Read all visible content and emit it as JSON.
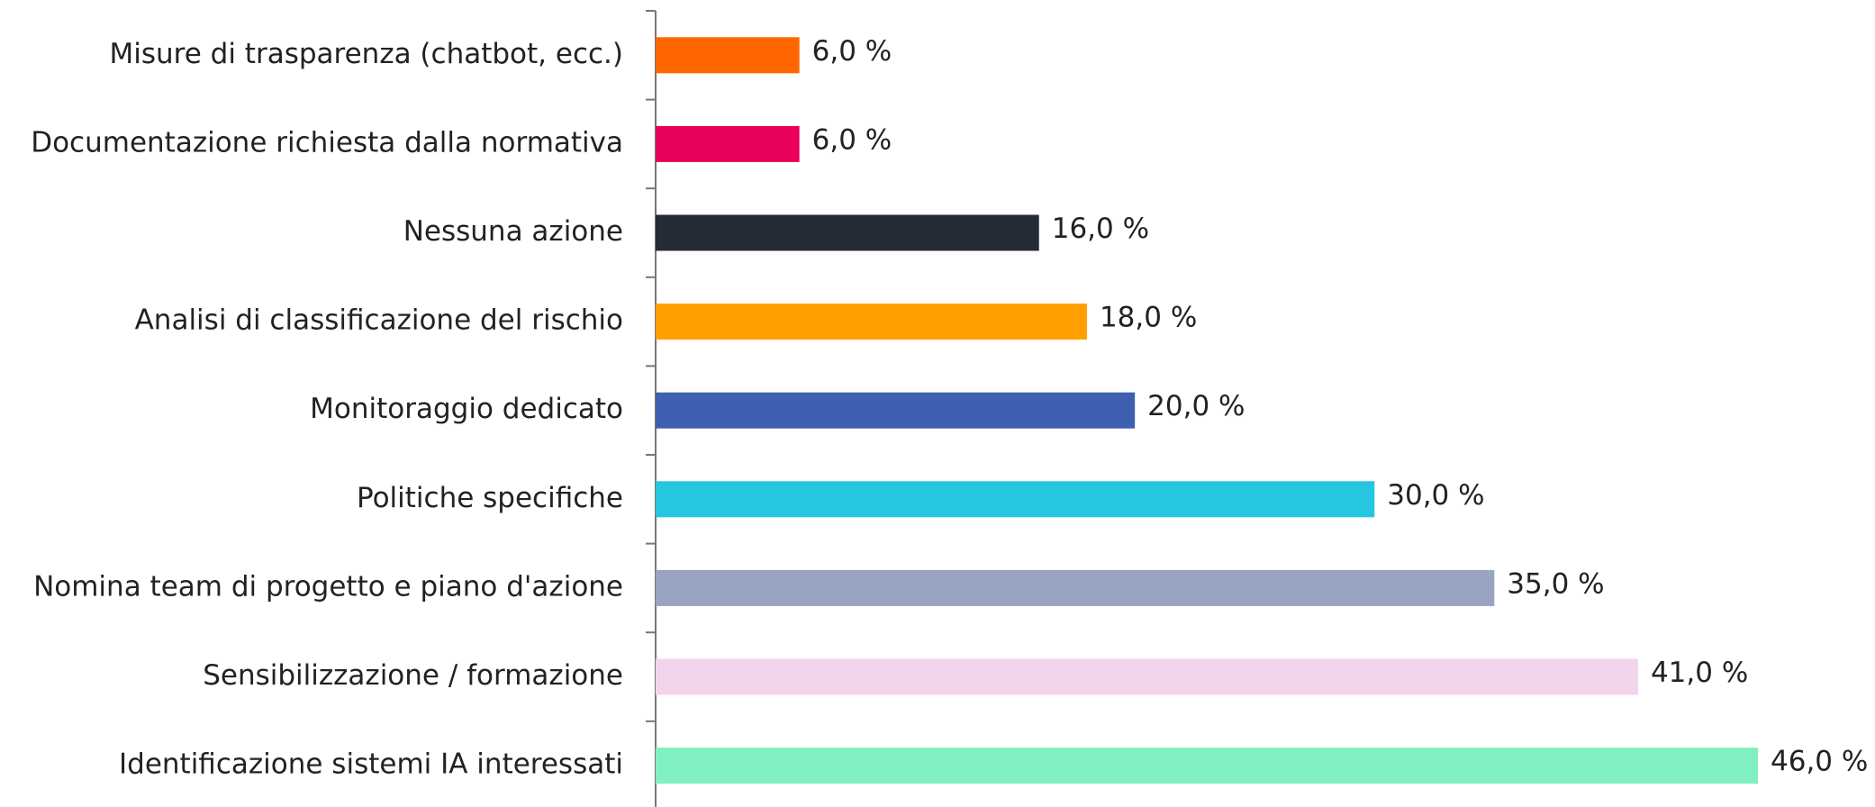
{
  "chart_data": {
    "type": "bar",
    "orientation": "horizontal",
    "categories": [
      "Misure di trasparenza (chatbot, ecc.)",
      "Documentazione richiesta dalla normativa",
      "Nessuna azione",
      "Analisi di classificazione del rischio",
      "Monitoraggio dedicato",
      "Politiche specifiche",
      "Nomina team di progetto e piano d'azione",
      "Sensibilizzazione / formazione",
      "Identificazione sistemi IA interessati"
    ],
    "values": [
      6,
      6,
      16,
      18,
      20,
      30,
      35,
      41,
      46
    ],
    "value_labels": [
      "6,0 %",
      "6,0 %",
      "16,0 %",
      "18,0 %",
      "20,0 %",
      "30,0 %",
      "35,0 %",
      "41,0 %",
      "46,0 %"
    ],
    "colors": [
      "#ff6600",
      "#e8005a",
      "#262b38",
      "#ffa000",
      "#3f5fb0",
      "#26c6e0",
      "#99a4c0",
      "#f2d4ec",
      "#80f0c0"
    ]
  }
}
